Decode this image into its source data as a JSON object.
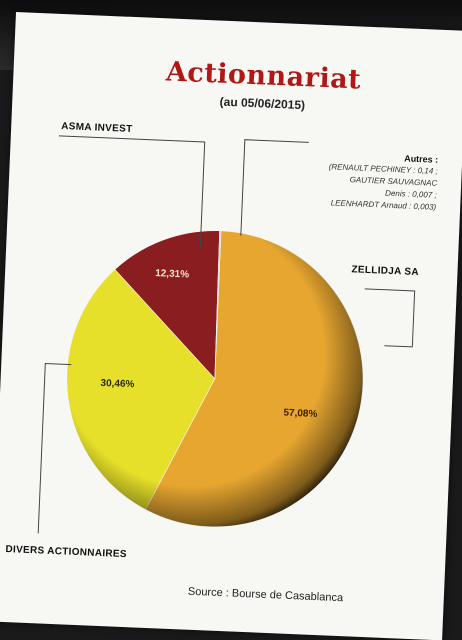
{
  "chart_data": {
    "type": "pie",
    "title": "Actionnariat",
    "subtitle": "(au 05/06/2015)",
    "slices": [
      {
        "label": "ZELLIDJA SA",
        "value": 57.08,
        "value_label": "57,08%",
        "color": "#e6a630"
      },
      {
        "label": "DIVERS ACTIONNAIRES",
        "value": 30.46,
        "value_label": "30,46%",
        "color": "#e6e02a"
      },
      {
        "label": "ASMA INVEST",
        "value": 12.31,
        "value_label": "12,31%",
        "color": "#8a1d1f"
      },
      {
        "label": "Autres",
        "value": 0.15,
        "value_label": "",
        "color": "#c9c9c9"
      }
    ],
    "others": {
      "heading": "Autres :",
      "lines": [
        "(RENAULT PECHINEY : 0,14 ;",
        "GAUTIER SAUVAGNAC",
        "Denis : 0,007 ;",
        "LEENHARDT Arnaud : 0,003)"
      ]
    },
    "source": "Source : Bourse de Casablanca"
  }
}
